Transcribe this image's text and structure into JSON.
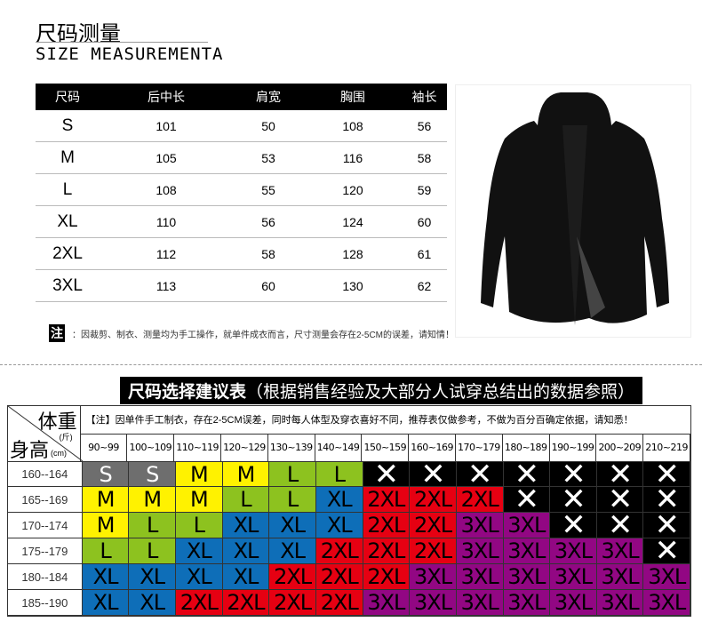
{
  "title_cn": "尺码测量",
  "title_en": "SIZE MEASUREMENTA",
  "measure": {
    "headers": [
      "尺码",
      "后中长",
      "肩宽",
      "胸围",
      "袖长"
    ],
    "rows": [
      [
        "S",
        "101",
        "50",
        "108",
        "56"
      ],
      [
        "M",
        "105",
        "53",
        "116",
        "58"
      ],
      [
        "L",
        "108",
        "55",
        "120",
        "59"
      ],
      [
        "XL",
        "110",
        "56",
        "124",
        "60"
      ],
      [
        "2XL",
        "112",
        "58",
        "128",
        "61"
      ],
      [
        "3XL",
        "113",
        "60",
        "130",
        "62"
      ]
    ]
  },
  "note_mark": "注",
  "note": "：因裁剪、制衣、测量均为手工操作，就单件成衣而言，尺寸测量会存在2-5CM的误差，请知情！",
  "rec": {
    "title_bold": "尺码选择建议表",
    "title_rest": "（根据销售经验及大部分人试穿总结出的数据参照）",
    "weight_label": "体重",
    "weight_unit": "(斤)",
    "height_label": "身高",
    "height_unit": "(cm)",
    "header_note": "【注】因单件手工制衣，存在2-5CM误差，同时每人体型及穿衣喜好不同，推荐表仅做参考，不做为百分百确定依据，请知悉！",
    "weights": [
      "90~99",
      "100~109",
      "110~119",
      "120~129",
      "130~139",
      "140~149",
      "150~159",
      "160~169",
      "170~179",
      "180~189",
      "190~199",
      "200~209",
      "210~219"
    ],
    "rows": [
      {
        "height": "160--164",
        "sizes": [
          "S",
          "S",
          "M",
          "M",
          "L",
          "L",
          "X",
          "X",
          "X",
          "X",
          "X",
          "X",
          "X"
        ]
      },
      {
        "height": "165--169",
        "sizes": [
          "M",
          "M",
          "M",
          "L",
          "L",
          "XL",
          "2XL",
          "2XL",
          "2XL",
          "X",
          "X",
          "X",
          "X"
        ]
      },
      {
        "height": "170--174",
        "sizes": [
          "M",
          "L",
          "L",
          "XL",
          "XL",
          "XL",
          "2XL",
          "2XL",
          "3XL",
          "3XL",
          "X",
          "X",
          "X"
        ]
      },
      {
        "height": "175--179",
        "sizes": [
          "L",
          "L",
          "XL",
          "XL",
          "XL",
          "2XL",
          "2XL",
          "2XL",
          "3XL",
          "3XL",
          "3XL",
          "3XL",
          "X"
        ]
      },
      {
        "height": "180--184",
        "sizes": [
          "XL",
          "XL",
          "XL",
          "XL",
          "2XL",
          "2XL",
          "2XL",
          "3XL",
          "3XL",
          "3XL",
          "3XL",
          "3XL",
          "3XL"
        ]
      },
      {
        "height": "185--190",
        "sizes": [
          "XL",
          "XL",
          "2XL",
          "2XL",
          "2XL",
          "2XL",
          "3XL",
          "3XL",
          "3XL",
          "3XL",
          "3XL",
          "3XL",
          "3XL"
        ]
      }
    ],
    "colors": {
      "S": "#6e6e6e",
      "M": "#fff200",
      "L": "#8dc21f",
      "XL": "#0e6eb8",
      "2XL": "#e60012",
      "3XL": "#920783",
      "X": "#000000"
    }
  }
}
